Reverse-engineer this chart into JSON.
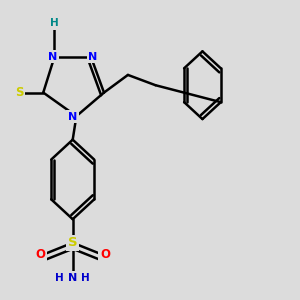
{
  "background_color": "#dcdcdc",
  "colors": {
    "bond": "#000000",
    "N": "#0000ff",
    "S_thiol": "#cccc00",
    "S_sulfo": "#cccc00",
    "O": "#ff0000",
    "H_color": "#008888",
    "NH2_color": "#0000cc"
  },
  "layout": {
    "xlim": [
      0,
      1.6
    ],
    "ylim": [
      0.0,
      1.0
    ]
  }
}
